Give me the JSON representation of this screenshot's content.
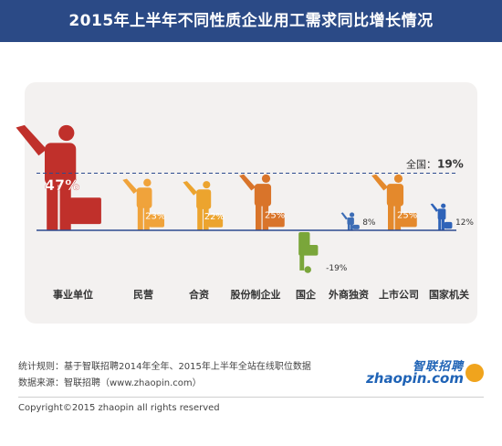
{
  "header": {
    "title": "2015年上半年不同性质企业用工需求同比增长情况"
  },
  "chart_data": {
    "type": "bar",
    "title": "2015年上半年不同性质企业用工需求同比增长情况",
    "categories": [
      "事业单位",
      "民营",
      "合资",
      "股份制企业",
      "国企",
      "外商独资",
      "上市公司",
      "国家机关"
    ],
    "values": [
      47,
      23,
      22,
      25,
      -19,
      8,
      25,
      12
    ],
    "value_labels": [
      "47%",
      "23%",
      "22%",
      "25%",
      "-19%",
      "8%",
      "25%",
      "12%"
    ],
    "colors": [
      "#c0302b",
      "#f0a33b",
      "#eca42e",
      "#d9742a",
      "#7aa63a",
      "#3d6db5",
      "#e4892c",
      "#2f63b8"
    ],
    "reference": {
      "label": "全国：",
      "value": 19,
      "value_label": "19%"
    },
    "ylim": [
      -19,
      47
    ]
  },
  "footer": {
    "note_rule": "统计规则：基于智联招聘2014年全年、2015年上半年全站在线职位数据",
    "note_source": "数据来源：智联招聘（www.zhaopin.com）",
    "copyright": "Copyright©2015 zhaopin all rights reserved",
    "logo_cn": "智联招聘",
    "logo_en": "zhaopin.com"
  }
}
